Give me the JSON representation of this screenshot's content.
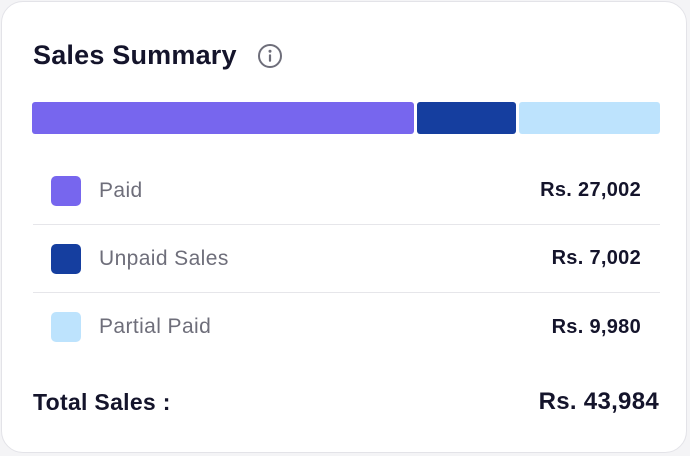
{
  "card": {
    "title": "Sales Summary",
    "info_icon": "info-circle-icon"
  },
  "breakdown_bar": {
    "segments": [
      {
        "key": "paid",
        "value": 27002,
        "color": "#7766ee"
      },
      {
        "key": "unpaid",
        "value": 7002,
        "color": "#153e9f"
      },
      {
        "key": "partial",
        "value": 9980,
        "color": "#bde3fd"
      }
    ]
  },
  "rows": [
    {
      "label": "Paid",
      "amount": "Rs. 27,002",
      "color": "#7766ee"
    },
    {
      "label": "Unpaid Sales",
      "amount": "Rs. 7,002",
      "color": "#153e9f"
    },
    {
      "label": "Partial Paid",
      "amount": "Rs. 9,980",
      "color": "#bde3fd"
    }
  ],
  "total": {
    "label": "Total Sales :",
    "value": "Rs. 43,984"
  }
}
